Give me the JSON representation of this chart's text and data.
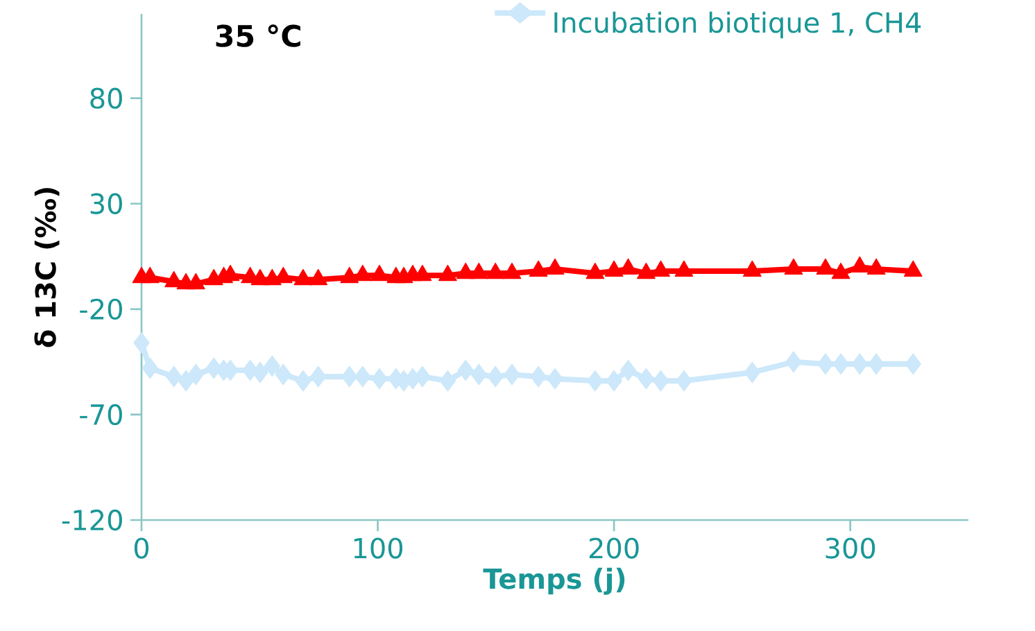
{
  "chart_data": {
    "type": "line",
    "title": "35 °C",
    "xlabel": "Temps (j)",
    "ylabel": "δ 13C (‰)",
    "xlim": [
      0,
      350
    ],
    "ylim": [
      -120,
      120
    ],
    "xticks": [
      0,
      100,
      200,
      300
    ],
    "yticks": [
      -120,
      -70,
      -20,
      30,
      80
    ],
    "legend": "top right",
    "series": [
      {
        "name": "Incubation biotique 1, CH4",
        "color": "#cce8fa",
        "marker": "diamond",
        "x": [
          0,
          3.6,
          13.7,
          18.8,
          23,
          30.6,
          34.8,
          37.6,
          46,
          50.2,
          55.3,
          60,
          68.4,
          74.8,
          88,
          93.6,
          100.7,
          107.7,
          111,
          114.8,
          118.9,
          129.6,
          137.2,
          142.8,
          149.8,
          156.8,
          168,
          175,
          192,
          200,
          206,
          213.6,
          219.8,
          229.6,
          258.5,
          276,
          289.5,
          296,
          304,
          311,
          326.6
        ],
        "values": [
          -36,
          -48,
          -52,
          -54,
          -51,
          -48,
          -49,
          -49,
          -49,
          -50,
          -47,
          -51,
          -54,
          -52,
          -52,
          -52,
          -53,
          -53,
          -54,
          -53,
          -52,
          -54,
          -49,
          -51,
          -52,
          -51,
          -52,
          -53,
          -54,
          -54,
          -49,
          -53,
          -54,
          -54,
          -50,
          -45,
          -46,
          -46,
          -46,
          -46,
          -46
        ]
      },
      {
        "color": "#ff0000",
        "marker": "triangle",
        "x": [
          0,
          3.6,
          13.7,
          18.8,
          23,
          30.6,
          34.8,
          37.6,
          46,
          50.2,
          55.3,
          60,
          68.4,
          74.8,
          88,
          93.6,
          100.7,
          107.7,
          111,
          114.8,
          118.9,
          129.6,
          137.2,
          142.8,
          149.8,
          156.8,
          168,
          175,
          192,
          200,
          206,
          213.6,
          219.8,
          229.6,
          258.5,
          276,
          289.5,
          296,
          304,
          311,
          326.6
        ],
        "values": [
          -5,
          -5,
          -7,
          -8,
          -8,
          -6,
          -5,
          -4,
          -5,
          -6,
          -6,
          -5,
          -6,
          -6,
          -5,
          -4,
          -4,
          -5,
          -5,
          -4,
          -4,
          -4,
          -3,
          -3,
          -3,
          -3,
          -2,
          -1,
          -3,
          -2,
          -1,
          -3,
          -2,
          -2,
          -2,
          -1,
          -1,
          -3,
          0,
          -1,
          -2
        ]
      }
    ]
  }
}
